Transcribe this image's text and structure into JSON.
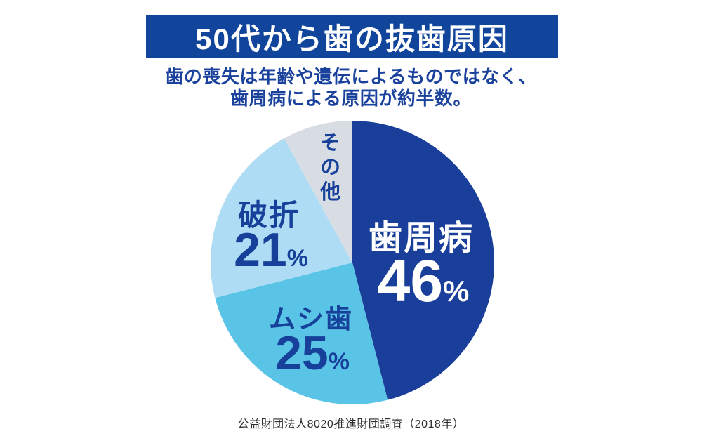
{
  "header": {
    "title": "50代から歯の抜歯原因",
    "subtitle_line1": "歯の喪失は年齢や遺伝によるものではなく、",
    "subtitle_line2": "歯周病による原因が約半数。"
  },
  "chart_data": {
    "type": "pie",
    "title": "50代から歯の抜歯原因",
    "start_angle_deg": 0,
    "direction": "clockwise",
    "start_position": "12-oclock",
    "legend_position": "none",
    "slices": [
      {
        "id": "periodontal",
        "label": "歯周病",
        "value": 46,
        "value_text": "46",
        "unit": "%",
        "color": "#1a3f9a",
        "label_color": "#ffffff",
        "value_visible": true
      },
      {
        "id": "cavities",
        "label": "ムシ歯",
        "value": 25,
        "value_text": "25",
        "unit": "%",
        "color": "#5ac4e7",
        "label_color": "#16409a",
        "value_visible": true
      },
      {
        "id": "fracture",
        "label": "破折",
        "value": 21,
        "value_text": "21",
        "unit": "%",
        "color": "#aedcf4",
        "label_color": "#16409a",
        "value_visible": true
      },
      {
        "id": "other",
        "label": "その他",
        "value": 8,
        "value_text": "",
        "unit": "",
        "color": "#d8dde3",
        "label_color": "#16409a",
        "value_visible": false
      }
    ]
  },
  "footer": {
    "source": "公益財団法人8020推進財団調査（2018年）"
  },
  "colors": {
    "background": "#ffffff",
    "banner_bg": "#11459c",
    "banner_text": "#ffffff",
    "subtitle_text": "#1a429d",
    "footer_text": "#2e2e2e"
  }
}
